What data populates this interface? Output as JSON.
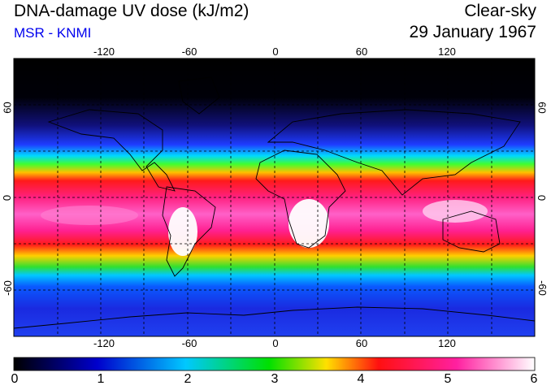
{
  "header": {
    "title": "DNA-damage UV dose (kJ/m2)",
    "subtitle": "MSR - KNMI",
    "condition": "Clear-sky",
    "date": "29 January 1967"
  },
  "map": {
    "lon_range": [
      -180,
      180
    ],
    "lat_range": [
      -90,
      90
    ],
    "grid": true,
    "lon_ticks": [
      "-120",
      "-60",
      "0",
      "60",
      "120"
    ],
    "lat_ticks_left": [
      "60",
      "0",
      "-60"
    ],
    "lat_ticks_right": [
      "60",
      "0",
      "-60"
    ]
  },
  "colorbar": {
    "labels": [
      "0",
      "1",
      "2",
      "3",
      "4",
      "5",
      "6"
    ],
    "range": [
      0,
      6
    ],
    "colors": [
      "#000000",
      "#0000cc",
      "#00c8ff",
      "#00e000",
      "#ffe000",
      "#ff1010",
      "#ff20a0",
      "#ffffff"
    ]
  }
}
